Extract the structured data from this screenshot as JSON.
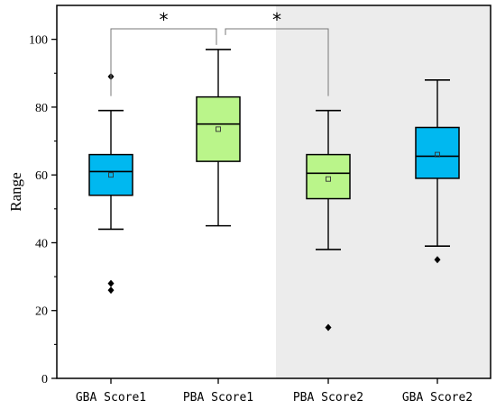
{
  "chart_data": {
    "type": "box",
    "ylabel": "Range",
    "ylim": [
      0,
      110
    ],
    "yticks": [
      0,
      20,
      40,
      60,
      80,
      100
    ],
    "categories": [
      "GBA Score1",
      "PBA Score1",
      "PBA Score2",
      "GBA Score2"
    ],
    "boxes": [
      {
        "category": "GBA Score1",
        "whisker_low": 44,
        "q1": 54,
        "median": 61,
        "q3": 66,
        "whisker_high": 79,
        "mean": 60,
        "outliers": [
          89,
          28,
          26
        ],
        "color": "#00b8f0"
      },
      {
        "category": "PBA Score1",
        "whisker_low": 45,
        "q1": 64,
        "median": 75,
        "q3": 83,
        "whisker_high": 97,
        "mean": 73.5,
        "outliers": [],
        "color": "#baf58a"
      },
      {
        "category": "PBA Score2",
        "whisker_low": 38,
        "q1": 53,
        "median": 60.5,
        "q3": 66,
        "whisker_high": 79,
        "mean": 58.8,
        "outliers": [
          15
        ],
        "color": "#baf58a"
      },
      {
        "category": "GBA Score2",
        "whisker_low": 39,
        "q1": 59,
        "median": 65.5,
        "q3": 74,
        "whisker_high": 88,
        "mean": 66,
        "outliers": [
          35
        ],
        "color": "#00b8f0"
      }
    ],
    "significance": [
      {
        "from": "GBA Score1",
        "to": "PBA Score1",
        "label": "*"
      },
      {
        "from": "PBA Score1",
        "to": "PBA Score2",
        "label": "*"
      }
    ],
    "shaded_region": {
      "from_category": "PBA Score2",
      "to_category": "GBA Score2",
      "color": "#ececec"
    },
    "grid": false,
    "legend": "none"
  }
}
